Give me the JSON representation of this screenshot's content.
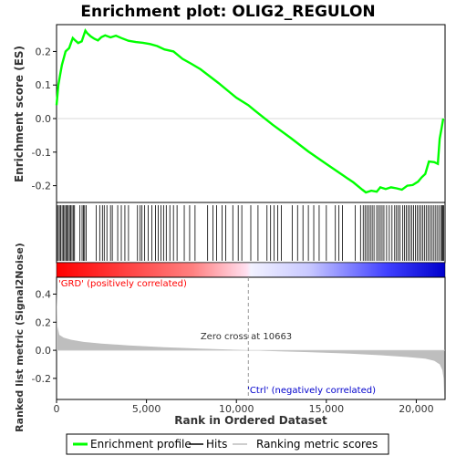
{
  "title": "Enrichment plot: OLIG2_REGULON",
  "colors": {
    "es_line": "#00ff00",
    "hits": "#000000",
    "metric_fill": "#bebebe",
    "pos_label": "#ff0000",
    "neg_label": "#0000cc",
    "zero_line": "#999999"
  },
  "legend": {
    "items": [
      "Enrichment profile",
      "Hits",
      "Ranking metric scores"
    ]
  },
  "chart_data": [
    {
      "type": "line",
      "name": "es_panel",
      "ylabel": "Enrichment score (ES)",
      "ylim": [
        -0.25,
        0.28
      ],
      "yticks": [
        "-0.2",
        "-0.1",
        "0.0",
        "0.1",
        "0.2"
      ],
      "xlim": [
        0,
        21600
      ],
      "series": [
        {
          "name": "Enrichment profile",
          "x": [
            0,
            100,
            200,
            300,
            400,
            500,
            600,
            700,
            800,
            900,
            1000,
            1200,
            1400,
            1600,
            1700,
            1900,
            2100,
            2300,
            2500,
            2700,
            3000,
            3300,
            3600,
            4000,
            4400,
            4800,
            5200,
            5600,
            6000,
            6500,
            7000,
            7500,
            8000,
            9000,
            10000,
            10663,
            11000,
            12000,
            13000,
            14000,
            15000,
            16000,
            16500,
            17000,
            17200,
            17500,
            17800,
            18000,
            18300,
            18600,
            18900,
            19200,
            19500,
            19800,
            20100,
            20300,
            20500,
            20700,
            21000,
            21200,
            21300,
            21400,
            21500
          ],
          "y": [
            0.04,
            0.1,
            0.13,
            0.16,
            0.18,
            0.2,
            0.205,
            0.21,
            0.225,
            0.24,
            0.235,
            0.225,
            0.23,
            0.262,
            0.255,
            0.245,
            0.238,
            0.233,
            0.243,
            0.248,
            0.242,
            0.247,
            0.24,
            0.232,
            0.228,
            0.226,
            0.222,
            0.216,
            0.206,
            0.2,
            0.178,
            0.163,
            0.147,
            0.106,
            0.062,
            0.04,
            0.025,
            -0.018,
            -0.057,
            -0.098,
            -0.135,
            -0.172,
            -0.19,
            -0.212,
            -0.22,
            -0.215,
            -0.218,
            -0.205,
            -0.21,
            -0.205,
            -0.208,
            -0.212,
            -0.2,
            -0.198,
            -0.188,
            -0.175,
            -0.165,
            -0.128,
            -0.13,
            -0.135,
            -0.06,
            -0.03,
            0.0
          ]
        }
      ]
    },
    {
      "type": "scatter",
      "name": "hits_panel",
      "series": [
        {
          "name": "Hits",
          "x": [
            20,
            90,
            160,
            230,
            310,
            380,
            450,
            520,
            590,
            650,
            720,
            790,
            860,
            930,
            1000,
            1300,
            1420,
            1500,
            1560,
            1650,
            2200,
            2400,
            2550,
            2650,
            2800,
            3000,
            3100,
            3400,
            3600,
            3800,
            4000,
            4500,
            4650,
            4750,
            4900,
            5100,
            5300,
            5500,
            5650,
            5800,
            5950,
            6100,
            6300,
            6500,
            6700,
            7100,
            7400,
            7700,
            8400,
            8700,
            8900,
            9200,
            9400,
            9800,
            10100,
            10300,
            10800,
            11200,
            11700,
            11900,
            12100,
            12300,
            12500,
            13100,
            13400,
            13700,
            14000,
            14300,
            14600,
            15000,
            15500,
            15700,
            15900,
            16600,
            16900,
            17050,
            17150,
            17250,
            17350,
            17450,
            17550,
            17650,
            17800,
            17900,
            18000,
            18100,
            18200,
            18350,
            18500,
            18650,
            18800,
            18900,
            19000,
            19100,
            19250,
            19350,
            19450,
            19550,
            19650,
            19750,
            19850,
            19950,
            20050,
            20150,
            20250,
            20350,
            20450,
            20550,
            20650,
            20750,
            20850,
            20950,
            21050,
            21150,
            21250,
            21350,
            21420,
            21470,
            21520
          ]
        }
      ]
    },
    {
      "type": "area",
      "name": "ranking_metric_panel",
      "xlabel": "Rank in Ordered Dataset",
      "ylabel": "Ranked list metric (Signal2Noise)",
      "ylim": [
        -0.35,
        0.52
      ],
      "yticks": [
        "-0.2",
        "0.0",
        "0.2",
        "0.4"
      ],
      "xlim": [
        0,
        21600
      ],
      "xticks": [
        "0",
        "5,000",
        "10,000",
        "15,000",
        "20,000"
      ],
      "annotations": [
        "'GRD' (positively correlated)",
        "Zero cross at 10663",
        "'Ctrl' (negatively correlated)"
      ],
      "zero_cross": 10663,
      "series": [
        {
          "name": "Ranking metric scores",
          "x": [
            0,
            50,
            150,
            400,
            800,
            1500,
            2500,
            4000,
            6000,
            8000,
            10000,
            10663,
            12000,
            14000,
            16000,
            18000,
            19500,
            20500,
            21000,
            21300,
            21450,
            21520,
            21560
          ],
          "y": [
            0.45,
            0.17,
            0.11,
            0.09,
            0.075,
            0.06,
            0.048,
            0.035,
            0.022,
            0.012,
            0.004,
            0.0,
            -0.006,
            -0.013,
            -0.022,
            -0.035,
            -0.048,
            -0.06,
            -0.075,
            -0.1,
            -0.14,
            -0.2,
            -0.34
          ]
        }
      ]
    }
  ]
}
